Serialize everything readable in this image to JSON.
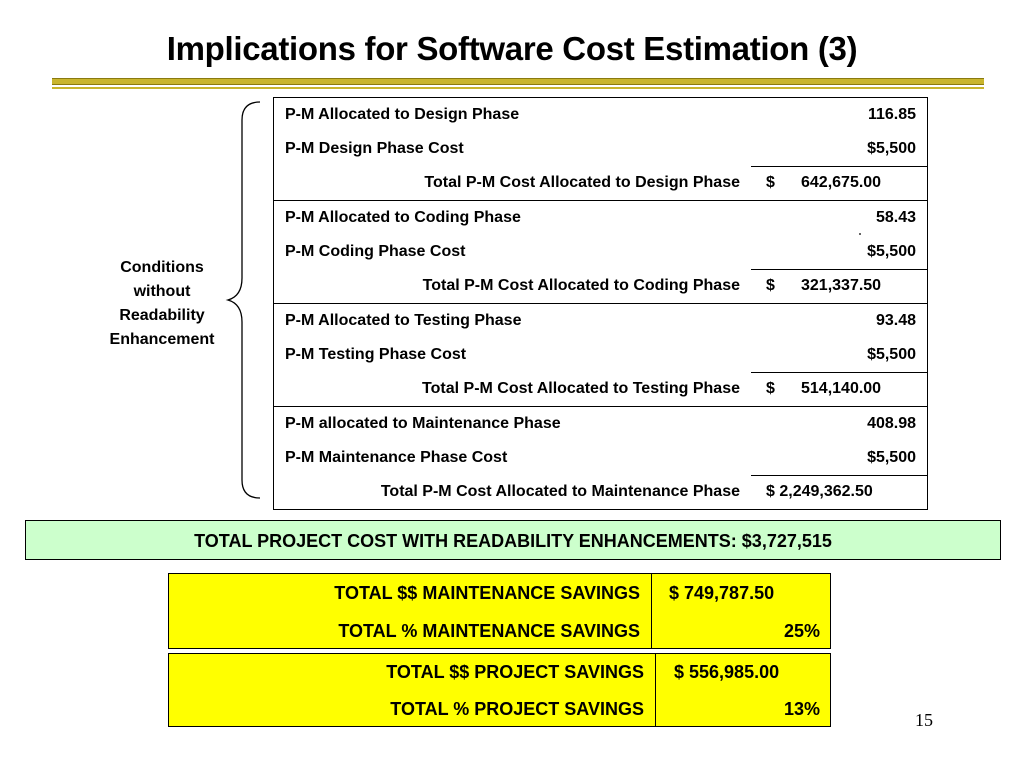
{
  "title": "Implications for Software Cost Estimation (3)",
  "condition_label": [
    "Conditions",
    "without",
    "Readability",
    "Enhancement"
  ],
  "groups": [
    {
      "rows": [
        {
          "label": "P-M Allocated to Design Phase",
          "value": "116.85"
        },
        {
          "label": "P-M Design Phase Cost",
          "value": "$5,500"
        }
      ],
      "total": {
        "label": "Total P-M Cost Allocated to Design Phase",
        "currency": "$",
        "amount": "642,675.00"
      }
    },
    {
      "rows": [
        {
          "label": "P-M Allocated to Coding Phase",
          "value": "58.43"
        },
        {
          "label": "P-M Coding Phase Cost",
          "value": "$5,500"
        }
      ],
      "total": {
        "label": "Total P-M Cost Allocated to Coding Phase",
        "currency": "$",
        "amount": "321,337.50"
      }
    },
    {
      "rows": [
        {
          "label": "P-M Allocated to Testing Phase",
          "value": "93.48"
        },
        {
          "label": "P-M Testing Phase Cost",
          "value": "$5,500"
        }
      ],
      "total": {
        "label": "Total P-M Cost Allocated to Testing Phase",
        "currency": "$",
        "amount": "514,140.00"
      }
    },
    {
      "rows": [
        {
          "label": "P-M allocated to Maintenance Phase",
          "value": "408.98"
        },
        {
          "label": "P-M Maintenance Phase Cost",
          "value": "$5,500"
        }
      ],
      "total": {
        "label": "Total P-M Cost Allocated to Maintenance Phase",
        "amount_full": "$ 2,249,362.50"
      }
    }
  ],
  "project_total": "TOTAL PROJECT COST WITH READABILITY ENHANCEMENTS: $3,727,515",
  "maintenance_savings": {
    "dollar_label": "TOTAL $$ MAINTENANCE SAVINGS",
    "dollar_value": "$ 749,787.50",
    "pct_label": "TOTAL % MAINTENANCE SAVINGS",
    "pct_value": "25%"
  },
  "project_savings": {
    "dollar_label": "TOTAL $$ PROJECT SAVINGS",
    "dollar_value": "$ 556,985.00",
    "pct_label": "TOTAL % PROJECT SAVINGS",
    "pct_value": "13%"
  },
  "page_number": "15",
  "colors": {
    "rule": "#c9b52d",
    "total_box": "#ccffcc",
    "savings_box": "#ffff00"
  }
}
